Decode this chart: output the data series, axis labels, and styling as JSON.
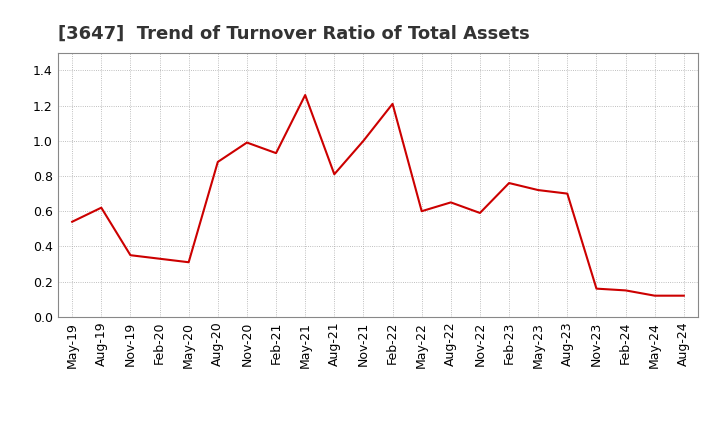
{
  "title": "[3647]  Trend of Turnover Ratio of Total Assets",
  "x_labels": [
    "May-19",
    "Aug-19",
    "Nov-19",
    "Feb-20",
    "May-20",
    "Aug-20",
    "Nov-20",
    "Feb-21",
    "May-21",
    "Aug-21",
    "Nov-21",
    "Feb-22",
    "May-22",
    "Aug-22",
    "Nov-22",
    "Feb-23",
    "May-23",
    "Aug-23",
    "Nov-23",
    "Feb-24",
    "May-24",
    "Aug-24"
  ],
  "y_values": [
    0.54,
    0.62,
    0.35,
    0.33,
    0.31,
    0.88,
    0.99,
    0.93,
    1.26,
    0.81,
    1.0,
    1.21,
    0.6,
    0.65,
    0.59,
    0.76,
    0.72,
    0.7,
    0.16,
    0.15,
    0.12,
    0.12
  ],
  "line_color": "#cc0000",
  "ylim": [
    0.0,
    1.5
  ],
  "yticks": [
    0.0,
    0.2,
    0.4,
    0.6,
    0.8,
    1.0,
    1.2,
    1.4
  ],
  "grid_color": "#aaaaaa",
  "bg_color": "#ffffff",
  "title_fontsize": 13,
  "tick_fontsize": 9
}
